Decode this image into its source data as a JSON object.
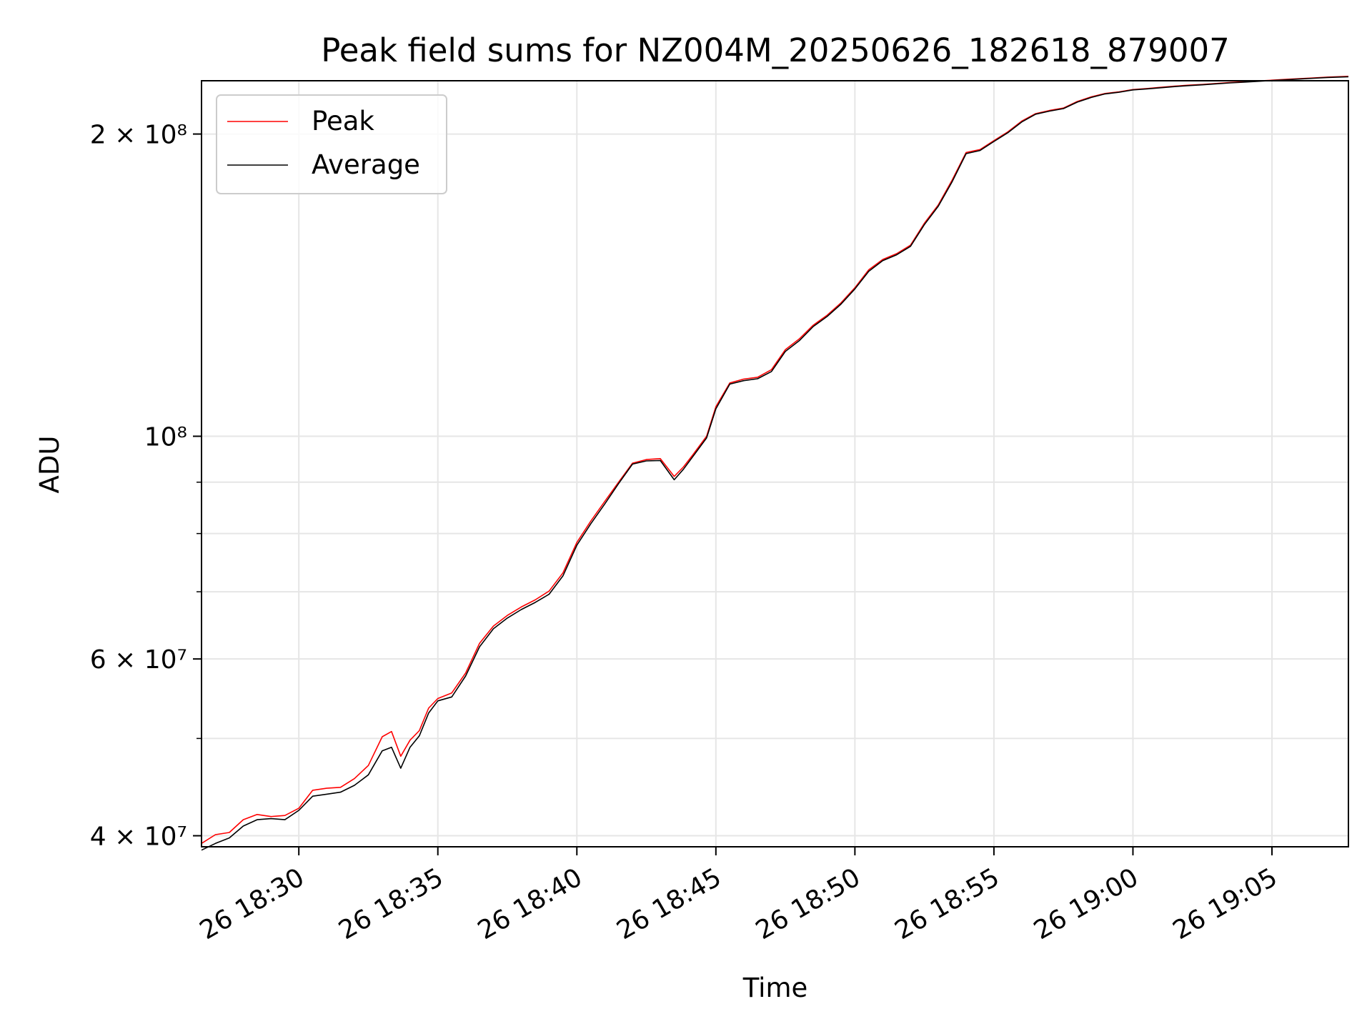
{
  "chart_data": {
    "type": "line",
    "title": "Peak field sums for NZ004M_20250626_182618_879007",
    "xlabel": "Time",
    "ylabel": "ADU",
    "yscale": "log",
    "grid": true,
    "legend_position": "top-left",
    "xlim": [
      "2025-06-26 18:26:30",
      "2025-06-26 19:07:45"
    ],
    "ylim": [
      39000000,
      226000000
    ],
    "x_ticks": [
      "26 18:30",
      "26 18:35",
      "26 18:40",
      "26 18:45",
      "26 18:50",
      "26 18:55",
      "26 19:00",
      "26 19:05"
    ],
    "y_tick_labels": [
      "4 × 10⁷",
      "6 × 10⁷",
      "10⁸",
      "2 × 10⁸"
    ],
    "colors": {
      "Peak": "#ff0000",
      "Average": "#000000"
    },
    "x": [
      "18:26:30",
      "18:27:00",
      "18:27:30",
      "18:28:00",
      "18:28:30",
      "18:29:00",
      "18:29:30",
      "18:30:00",
      "18:30:30",
      "18:31:00",
      "18:31:30",
      "18:32:00",
      "18:32:30",
      "18:33:00",
      "18:33:20",
      "18:33:40",
      "18:34:00",
      "18:34:20",
      "18:34:40",
      "18:35:00",
      "18:35:30",
      "18:36:00",
      "18:36:30",
      "18:37:00",
      "18:37:30",
      "18:38:00",
      "18:38:30",
      "18:39:00",
      "18:39:30",
      "18:40:00",
      "18:40:30",
      "18:41:00",
      "18:41:30",
      "18:42:00",
      "18:42:30",
      "18:43:00",
      "18:43:30",
      "18:43:50",
      "18:44:10",
      "18:44:40",
      "18:45:00",
      "18:45:30",
      "18:46:00",
      "18:46:30",
      "18:47:00",
      "18:47:30",
      "18:48:00",
      "18:48:30",
      "18:49:00",
      "18:49:30",
      "18:50:00",
      "18:50:30",
      "18:51:00",
      "18:51:30",
      "18:52:00",
      "18:52:30",
      "18:53:00",
      "18:53:30",
      "18:54:00",
      "18:54:30",
      "18:55:00",
      "18:55:30",
      "18:56:00",
      "18:56:30",
      "18:57:00",
      "18:57:30",
      "18:58:00",
      "18:58:30",
      "18:59:00",
      "18:59:30",
      "19:00:00",
      "19:00:30",
      "19:01:00",
      "19:01:30",
      "19:02:00",
      "19:02:30",
      "19:03:00",
      "19:03:30",
      "19:04:00",
      "19:04:30",
      "19:05:00",
      "19:05:30",
      "19:06:00",
      "19:06:30",
      "19:07:00",
      "19:07:45"
    ],
    "series": [
      {
        "name": "Peak",
        "values": [
          39300000,
          40100000,
          40300000,
          41500000,
          42000000,
          41800000,
          41900000,
          42600000,
          44400000,
          44600000,
          44700000,
          45600000,
          47000000,
          50200000,
          50800000,
          48000000,
          49800000,
          50900000,
          53600000,
          54800000,
          55500000,
          58100000,
          62200000,
          64700000,
          66300000,
          67600000,
          68700000,
          70100000,
          73100000,
          78400000,
          82300000,
          86100000,
          90000000,
          94000000,
          94800000,
          95000000,
          91200000,
          93200000,
          95800000,
          100000000,
          107000000,
          113000000,
          114000000,
          114500000,
          116500000,
          122000000,
          125000000,
          129000000,
          132000000,
          135800000,
          140600000,
          146500000,
          150000000,
          152000000,
          155000000,
          163000000,
          170000000,
          180000000,
          191700000,
          193000000,
          197000000,
          201000000,
          206000000,
          209600000,
          211100000,
          212300000,
          215500000,
          217800000,
          219500000,
          220300000,
          221500000,
          222000000,
          222600000,
          223200000,
          223700000,
          224100000,
          224600000,
          225100000,
          225500000,
          225900000,
          226300000,
          226700000,
          227100000,
          227500000,
          227900000,
          228300000
        ]
      },
      {
        "name": "Average",
        "values": [
          38700000,
          39300000,
          39800000,
          40900000,
          41500000,
          41600000,
          41500000,
          42400000,
          43800000,
          44000000,
          44200000,
          44900000,
          46000000,
          48600000,
          49000000,
          46700000,
          49000000,
          50300000,
          53000000,
          54500000,
          55000000,
          57700000,
          61700000,
          64300000,
          65900000,
          67200000,
          68300000,
          69600000,
          72600000,
          77900000,
          81800000,
          85600000,
          89700000,
          93800000,
          94500000,
          94600000,
          90500000,
          92700000,
          95400000,
          99600000,
          106500000,
          112700000,
          113600000,
          114100000,
          116000000,
          121500000,
          124500000,
          128600000,
          131600000,
          135400000,
          140200000,
          146000000,
          149600000,
          151600000,
          154600000,
          162500000,
          169500000,
          179300000,
          191200000,
          192600000,
          196600000,
          200600000,
          205600000,
          209300000,
          210800000,
          212000000,
          215200000,
          217500000,
          219300000,
          220100000,
          221300000,
          221800000,
          222400000,
          223000000,
          223500000,
          223900000,
          224400000,
          224900000,
          225300000,
          225700000,
          226100000,
          226500000,
          226900000,
          227300000,
          227700000,
          228100000
        ]
      }
    ]
  }
}
